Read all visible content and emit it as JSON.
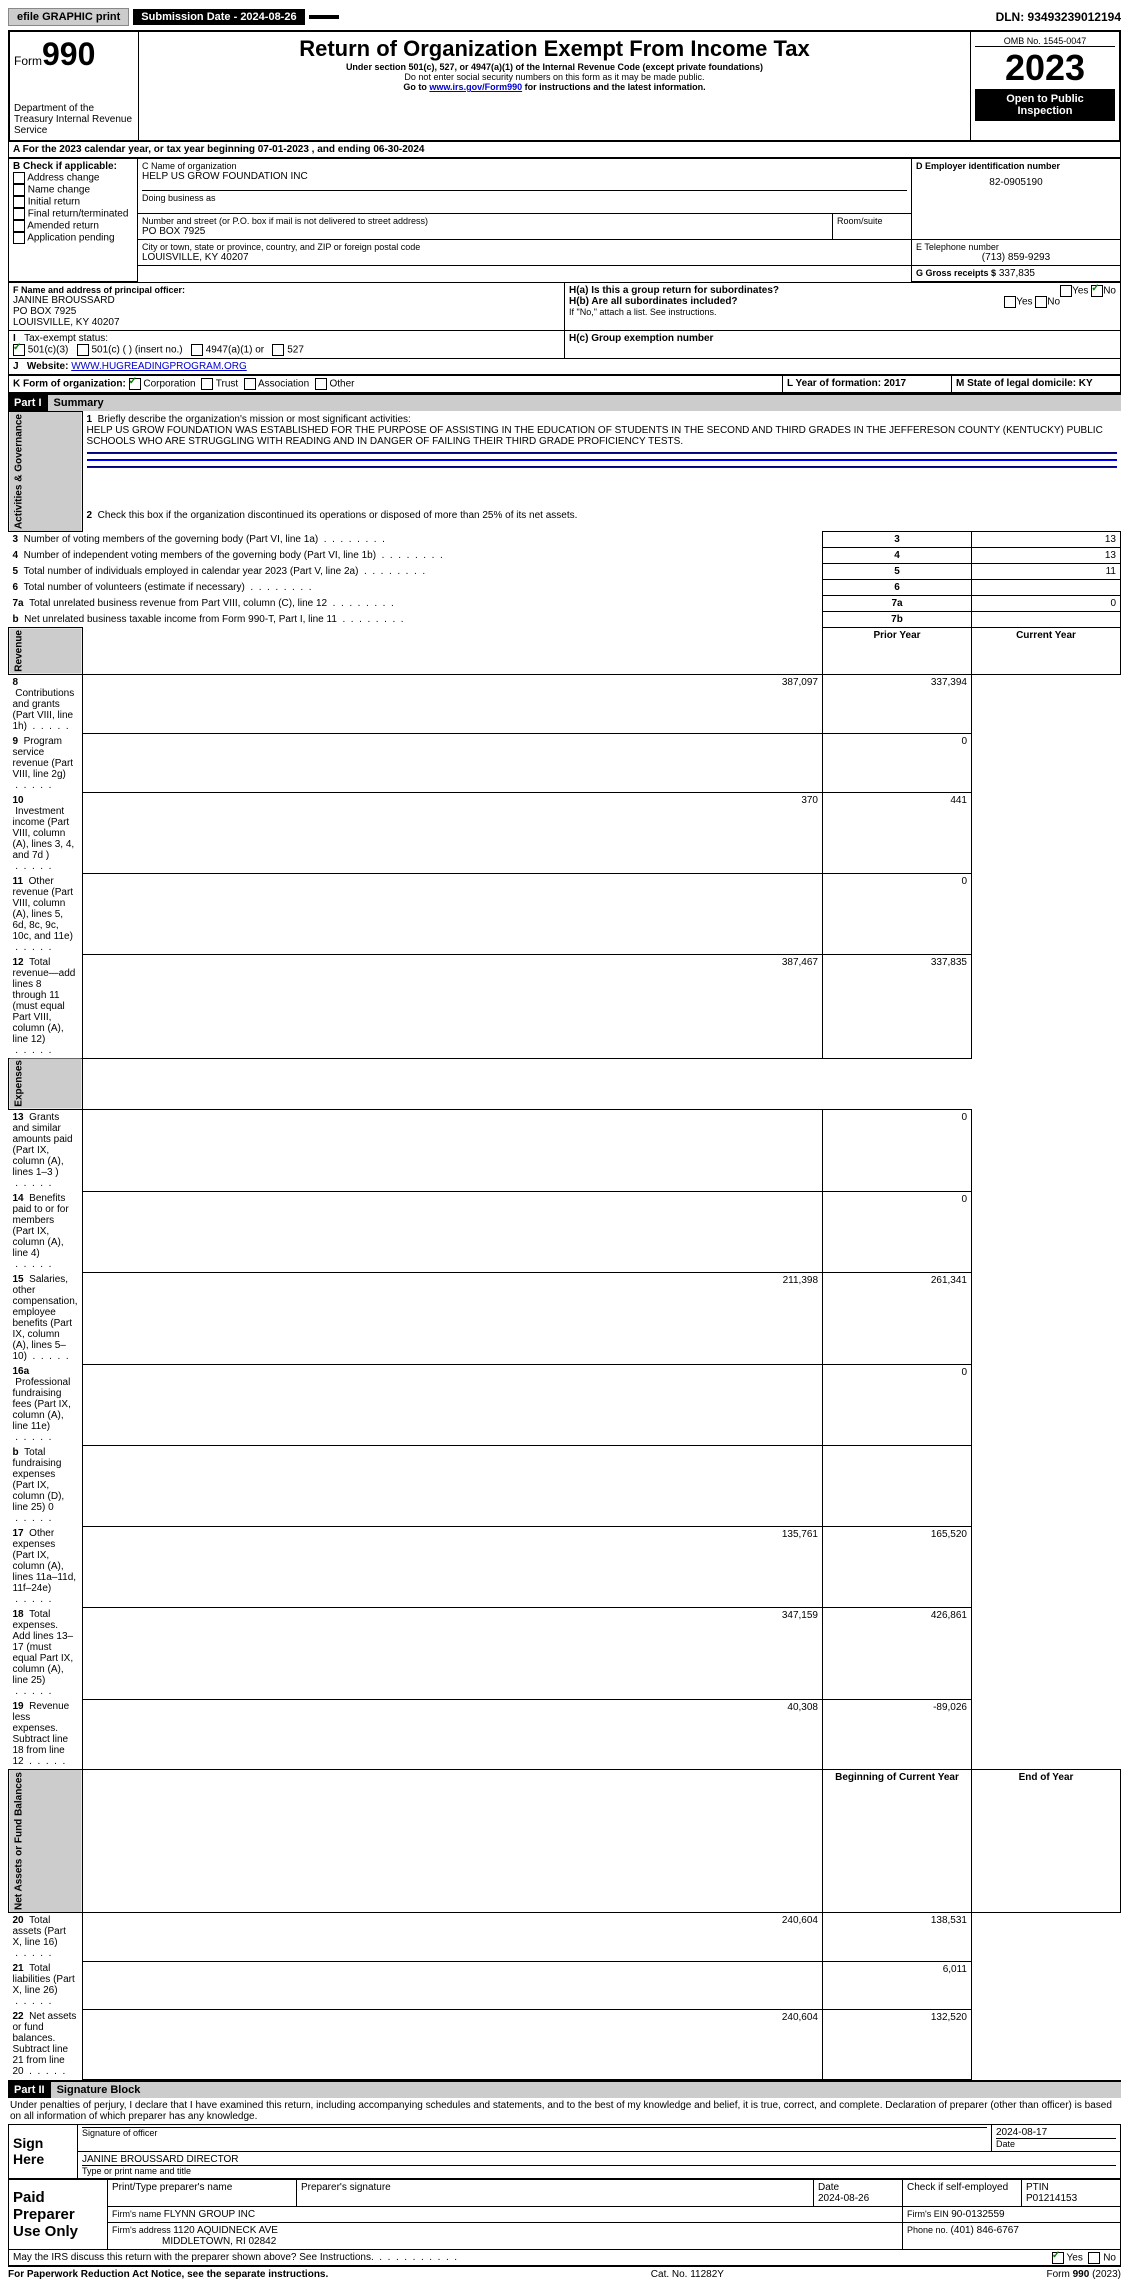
{
  "topbar": {
    "efile": "efile GRAPHIC print",
    "submission": "Submission Date - 2024-08-26",
    "dln": "DLN: 93493239012194"
  },
  "header": {
    "form_label": "Form",
    "form_num": "990",
    "title": "Return of Organization Exempt From Income Tax",
    "subtitle1": "Under section 501(c), 527, or 4947(a)(1) of the Internal Revenue Code (except private foundations)",
    "subtitle2": "Do not enter social security numbers on this form as it may be made public.",
    "subtitle3_pre": "Go to ",
    "subtitle3_link": "www.irs.gov/Form990",
    "subtitle3_post": " for instructions and the latest information.",
    "dept": "Department of the Treasury\nInternal Revenue Service",
    "omb": "OMB No. 1545-0047",
    "year": "2023",
    "open": "Open to Public Inspection"
  },
  "A": {
    "line": "A For the 2023 calendar year, or tax year beginning 07-01-2023    , and ending 06-30-2024"
  },
  "B": {
    "title": "B Check if applicable:",
    "opts": [
      "Address change",
      "Name change",
      "Initial return",
      "Final return/terminated",
      "Amended return",
      "Application pending"
    ]
  },
  "C": {
    "name_label": "C Name of organization",
    "name": "HELP US GROW FOUNDATION INC",
    "dba_label": "Doing business as",
    "street_label": "Number and street (or P.O. box if mail is not delivered to street address)",
    "room_label": "Room/suite",
    "street": "PO BOX 7925",
    "city_label": "City or town, state or province, country, and ZIP or foreign postal code",
    "city": "LOUISVILLE, KY  40207"
  },
  "D": {
    "label": "D Employer identification number",
    "val": "82-0905190"
  },
  "E": {
    "label": "E Telephone number",
    "val": "(713) 859-9293"
  },
  "G": {
    "label": "G Gross receipts $",
    "val": "337,835"
  },
  "F": {
    "label": "F Name and address of principal officer:",
    "name": "JANINE BROUSSARD",
    "addr1": "PO BOX 7925",
    "addr2": "LOUISVILLE, KY  40207"
  },
  "H": {
    "a": "H(a)  Is this a group return for subordinates?",
    "b": "H(b)  Are all subordinates included?",
    "b_note": "If \"No,\" attach a list. See instructions.",
    "c": "H(c)  Group exemption number  "
  },
  "I": {
    "label": "Tax-exempt status:",
    "opts": [
      "501(c)(3)",
      "501(c) (  ) (insert no.)",
      "4947(a)(1) or",
      "527"
    ]
  },
  "J": {
    "label": "Website: ",
    "val": "WWW.HUGREADINGPROGRAM.ORG"
  },
  "K": {
    "label": "K Form of organization:",
    "opts": [
      "Corporation",
      "Trust",
      "Association",
      "Other"
    ]
  },
  "L": {
    "label": "L Year of formation: 2017"
  },
  "M": {
    "label": "M State of legal domicile: KY"
  },
  "part1": {
    "bar": "Part I",
    "title": "Summary",
    "q1": "Briefly describe the organization's mission or most significant activities:",
    "mission": "HELP US GROW FOUNDATION WAS ESTABLISHED FOR THE PURPOSE OF ASSISTING IN THE EDUCATION OF STUDENTS IN THE SECOND AND THIRD GRADES IN THE JEFFERESON COUNTY (KENTUCKY) PUBLIC SCHOOLS WHO ARE STRUGGLING WITH READING AND IN DANGER OF FAILING THEIR THIRD GRADE PROFICIENCY TESTS.",
    "q2": "Check this box       if the organization discontinued its operations or disposed of more than 25% of its net assets.",
    "vert_gov": "Activities & Governance",
    "vert_rev": "Revenue",
    "vert_exp": "Expenses",
    "vert_net": "Net Assets or Fund Balances",
    "rows_gov": [
      {
        "n": "3",
        "t": "Number of voting members of the governing body (Part VI, line 1a)",
        "box": "3",
        "v": "13"
      },
      {
        "n": "4",
        "t": "Number of independent voting members of the governing body (Part VI, line 1b)",
        "box": "4",
        "v": "13"
      },
      {
        "n": "5",
        "t": "Total number of individuals employed in calendar year 2023 (Part V, line 2a)",
        "box": "5",
        "v": "11"
      },
      {
        "n": "6",
        "t": "Total number of volunteers (estimate if necessary)",
        "box": "6",
        "v": ""
      },
      {
        "n": "7a",
        "t": "Total unrelated business revenue from Part VIII, column (C), line 12",
        "box": "7a",
        "v": "0"
      },
      {
        "n": "b",
        "t": "Net unrelated business taxable income from Form 990-T, Part I, line 11",
        "box": "7b",
        "v": ""
      }
    ],
    "hdr_prior": "Prior Year",
    "hdr_current": "Current Year",
    "rows_rev": [
      {
        "n": "8",
        "t": "Contributions and grants (Part VIII, line 1h)",
        "p": "387,097",
        "c": "337,394"
      },
      {
        "n": "9",
        "t": "Program service revenue (Part VIII, line 2g)",
        "p": "",
        "c": "0"
      },
      {
        "n": "10",
        "t": "Investment income (Part VIII, column (A), lines 3, 4, and 7d )",
        "p": "370",
        "c": "441"
      },
      {
        "n": "11",
        "t": "Other revenue (Part VIII, column (A), lines 5, 6d, 8c, 9c, 10c, and 11e)",
        "p": "",
        "c": "0"
      },
      {
        "n": "12",
        "t": "Total revenue—add lines 8 through 11 (must equal Part VIII, column (A), line 12)",
        "p": "387,467",
        "c": "337,835"
      }
    ],
    "rows_exp": [
      {
        "n": "13",
        "t": "Grants and similar amounts paid (Part IX, column (A), lines 1–3 )",
        "p": "",
        "c": "0"
      },
      {
        "n": "14",
        "t": "Benefits paid to or for members (Part IX, column (A), line 4)",
        "p": "",
        "c": "0"
      },
      {
        "n": "15",
        "t": "Salaries, other compensation, employee benefits (Part IX, column (A), lines 5–10)",
        "p": "211,398",
        "c": "261,341"
      },
      {
        "n": "16a",
        "t": "Professional fundraising fees (Part IX, column (A), line 11e)",
        "p": "",
        "c": "0"
      },
      {
        "n": "b",
        "t": "Total fundraising expenses (Part IX, column (D), line 25) 0",
        "p": "",
        "c": ""
      },
      {
        "n": "17",
        "t": "Other expenses (Part IX, column (A), lines 11a–11d, 11f–24e)",
        "p": "135,761",
        "c": "165,520"
      },
      {
        "n": "18",
        "t": "Total expenses. Add lines 13–17 (must equal Part IX, column (A), line 25)",
        "p": "347,159",
        "c": "426,861"
      },
      {
        "n": "19",
        "t": "Revenue less expenses. Subtract line 18 from line 12",
        "p": "40,308",
        "c": "-89,026"
      }
    ],
    "hdr_begin": "Beginning of Current Year",
    "hdr_end": "End of Year",
    "rows_net": [
      {
        "n": "20",
        "t": "Total assets (Part X, line 16)",
        "p": "240,604",
        "c": "138,531"
      },
      {
        "n": "21",
        "t": "Total liabilities (Part X, line 26)",
        "p": "",
        "c": "6,011"
      },
      {
        "n": "22",
        "t": "Net assets or fund balances. Subtract line 21 from line 20",
        "p": "240,604",
        "c": "132,520"
      }
    ]
  },
  "part2": {
    "bar": "Part II",
    "title": "Signature Block",
    "perjury": "Under penalties of perjury, I declare that I have examined this return, including accompanying schedules and statements, and to the best of my knowledge and belief, it is true, correct, and complete. Declaration of preparer (other than officer) is based on all information of which preparer has any knowledge.",
    "sign_here": "Sign Here",
    "sig_officer": "Signature of officer",
    "sig_date": "2024-08-17",
    "date_lbl": "Date",
    "officer_name": "JANINE BROUSSARD DIRECTOR",
    "type_name": "Type or print name and title",
    "paid": "Paid Preparer Use Only",
    "prep_name_lbl": "Print/Type preparer's name",
    "prep_sig_lbl": "Preparer's signature",
    "prep_date": "2024-08-26",
    "check_self": "Check       if self-employed",
    "ptin_lbl": "PTIN",
    "ptin": "P01214153",
    "firm_name_lbl": "Firm's name   ",
    "firm_name": "FLYNN GROUP INC",
    "firm_ein_lbl": "Firm's EIN  ",
    "firm_ein": "90-0132559",
    "firm_addr_lbl": "Firm's address  ",
    "firm_addr1": "1120 AQUIDNECK AVE",
    "firm_addr2": "MIDDLETOWN, RI  02842",
    "phone_lbl": "Phone no. ",
    "phone": "(401) 846-6767",
    "discuss": "May the IRS discuss this return with the preparer shown above? See Instructions."
  },
  "footer": {
    "paperwork": "For Paperwork Reduction Act Notice, see the separate instructions.",
    "cat": "Cat. No. 11282Y",
    "form": "Form 990 (2023)"
  },
  "yn": {
    "yes": "Yes",
    "no": "No"
  }
}
